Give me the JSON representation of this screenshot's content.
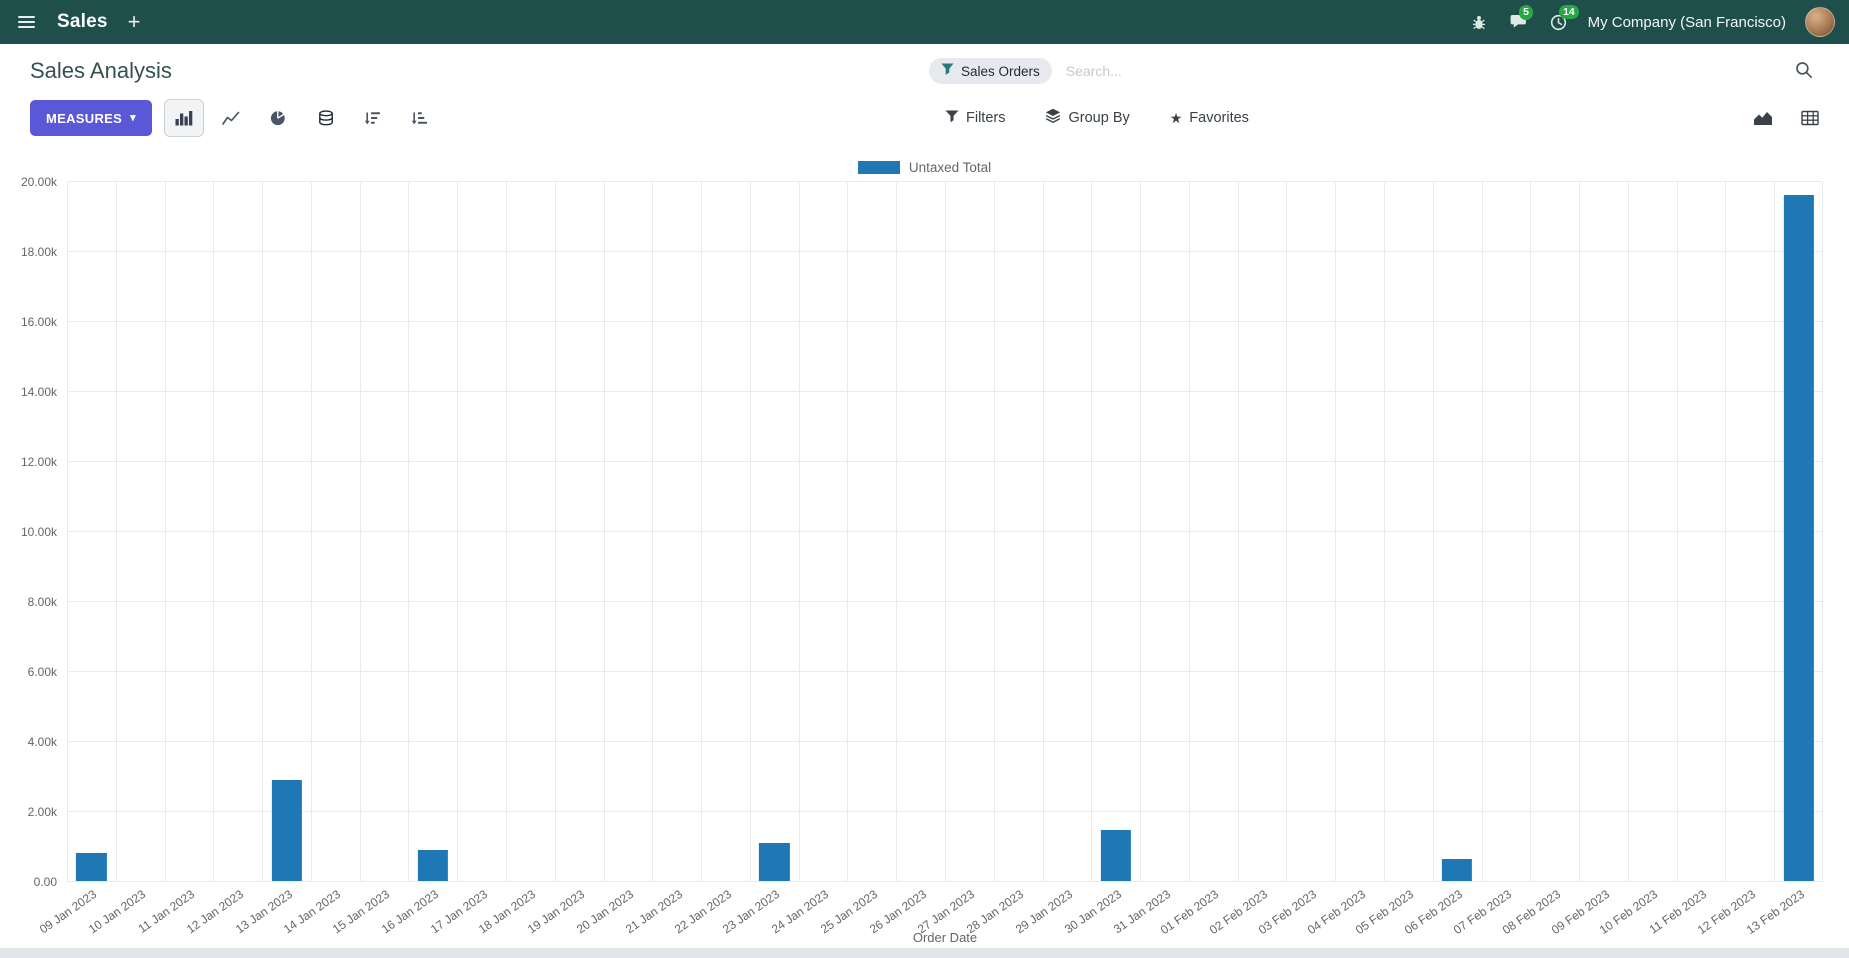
{
  "colors": {
    "accent": "#5b58d8",
    "navbar_bg": "#1f4f4a",
    "badge_green": "#28a745"
  },
  "icons": {
    "star": "★",
    "caret_down": "▾",
    "close": "×",
    "plus": "+"
  },
  "navbar": {
    "app_name": "Sales",
    "company_name": "My Company (San Francisco)",
    "message_badge": "5",
    "activity_badge": "14"
  },
  "control_panel": {
    "title": "Sales Analysis",
    "search": {
      "facet_label": "Sales Orders",
      "placeholder": "Search..."
    },
    "measures_label": "MEASURES",
    "filters_label": "Filters",
    "group_by_label": "Group By",
    "favorites_label": "Favorites"
  },
  "chart_data": {
    "type": "bar",
    "legend": "Untaxed Total",
    "bar_color": "#1f77b4",
    "xlabel": "Order Date",
    "ylabel": "",
    "ylim": [
      0,
      20000
    ],
    "grid": true,
    "legend_position": "top",
    "ytick_labels": [
      "0.00",
      "2.00k",
      "4.00k",
      "6.00k",
      "8.00k",
      "10.00k",
      "12.00k",
      "14.00k",
      "16.00k",
      "18.00k",
      "20.00k"
    ],
    "categories": [
      "09 Jan 2023",
      "10 Jan 2023",
      "11 Jan 2023",
      "12 Jan 2023",
      "13 Jan 2023",
      "14 Jan 2023",
      "15 Jan 2023",
      "16 Jan 2023",
      "17 Jan 2023",
      "18 Jan 2023",
      "19 Jan 2023",
      "20 Jan 2023",
      "21 Jan 2023",
      "22 Jan 2023",
      "23 Jan 2023",
      "24 Jan 2023",
      "25 Jan 2023",
      "26 Jan 2023",
      "27 Jan 2023",
      "28 Jan 2023",
      "29 Jan 2023",
      "30 Jan 2023",
      "31 Jan 2023",
      "01 Feb 2023",
      "02 Feb 2023",
      "03 Feb 2023",
      "04 Feb 2023",
      "05 Feb 2023",
      "06 Feb 2023",
      "07 Feb 2023",
      "08 Feb 2023",
      "09 Feb 2023",
      "10 Feb 2023",
      "11 Feb 2023",
      "12 Feb 2023",
      "13 Feb 2023"
    ],
    "values": [
      800,
      0,
      0,
      0,
      2900,
      0,
      0,
      900,
      0,
      0,
      0,
      0,
      0,
      0,
      1100,
      0,
      0,
      0,
      0,
      0,
      0,
      1450,
      0,
      0,
      0,
      0,
      0,
      0,
      620,
      0,
      0,
      0,
      0,
      0,
      0,
      19600
    ]
  }
}
